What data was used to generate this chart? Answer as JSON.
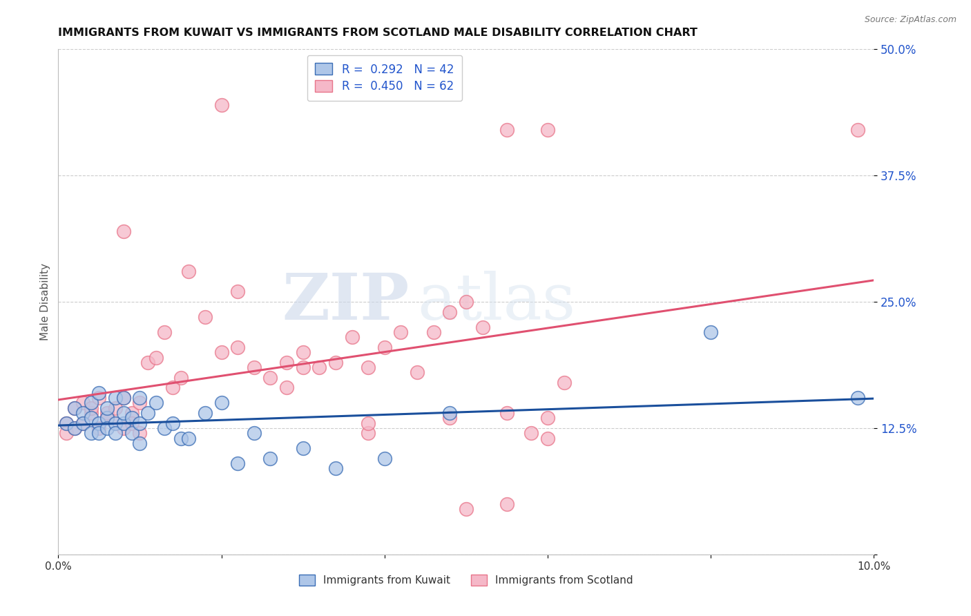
{
  "title": "IMMIGRANTS FROM KUWAIT VS IMMIGRANTS FROM SCOTLAND MALE DISABILITY CORRELATION CHART",
  "source": "Source: ZipAtlas.com",
  "ylabel": "Male Disability",
  "xlim": [
    0.0,
    0.1
  ],
  "ylim": [
    0.0,
    0.5
  ],
  "yticks": [
    0.0,
    0.125,
    0.25,
    0.375,
    0.5
  ],
  "ytick_labels": [
    "",
    "12.5%",
    "25.0%",
    "37.5%",
    "50.0%"
  ],
  "xticks": [
    0.0,
    0.02,
    0.04,
    0.06,
    0.08,
    0.1
  ],
  "xtick_labels": [
    "0.0%",
    "",
    "",
    "",
    "",
    "10.0%"
  ],
  "kuwait_color": "#aec6e8",
  "scotland_color": "#f5b8c8",
  "kuwait_edge_color": "#3a6db5",
  "scotland_edge_color": "#e8758a",
  "kuwait_line_color": "#1a4f9c",
  "scotland_line_color": "#e05070",
  "kuwait_R": 0.292,
  "kuwait_N": 42,
  "scotland_R": 0.45,
  "scotland_N": 62,
  "legend_label_kuwait": "Immigrants from Kuwait",
  "legend_label_scotland": "Immigrants from Scotland",
  "watermark_zip": "ZIP",
  "watermark_atlas": "atlas",
  "background_color": "#ffffff",
  "grid_color": "#cccccc",
  "kuwait_x": [
    0.001,
    0.002,
    0.002,
    0.003,
    0.003,
    0.004,
    0.004,
    0.004,
    0.005,
    0.005,
    0.005,
    0.006,
    0.006,
    0.006,
    0.007,
    0.007,
    0.007,
    0.008,
    0.008,
    0.008,
    0.009,
    0.009,
    0.01,
    0.01,
    0.01,
    0.011,
    0.012,
    0.013,
    0.014,
    0.015,
    0.016,
    0.018,
    0.02,
    0.022,
    0.024,
    0.026,
    0.03,
    0.034,
    0.04,
    0.048,
    0.08,
    0.098
  ],
  "kuwait_y": [
    0.13,
    0.145,
    0.125,
    0.14,
    0.13,
    0.15,
    0.135,
    0.12,
    0.16,
    0.13,
    0.12,
    0.135,
    0.145,
    0.125,
    0.155,
    0.13,
    0.12,
    0.155,
    0.13,
    0.14,
    0.12,
    0.135,
    0.13,
    0.155,
    0.11,
    0.14,
    0.15,
    0.125,
    0.13,
    0.115,
    0.115,
    0.14,
    0.15,
    0.09,
    0.12,
    0.095,
    0.105,
    0.085,
    0.095,
    0.14,
    0.22,
    0.155
  ],
  "scotland_x": [
    0.001,
    0.001,
    0.002,
    0.002,
    0.003,
    0.003,
    0.004,
    0.004,
    0.005,
    0.005,
    0.006,
    0.006,
    0.007,
    0.007,
    0.008,
    0.008,
    0.009,
    0.009,
    0.01,
    0.01,
    0.011,
    0.012,
    0.013,
    0.014,
    0.015,
    0.016,
    0.018,
    0.02,
    0.022,
    0.024,
    0.026,
    0.028,
    0.03,
    0.032,
    0.034,
    0.036,
    0.038,
    0.04,
    0.042,
    0.044,
    0.046,
    0.048,
    0.05,
    0.052,
    0.055,
    0.058,
    0.06,
    0.06,
    0.062,
    0.02,
    0.008,
    0.022,
    0.048,
    0.055,
    0.055,
    0.03,
    0.028,
    0.038,
    0.06,
    0.038,
    0.05,
    0.098
  ],
  "scotland_y": [
    0.13,
    0.12,
    0.145,
    0.125,
    0.15,
    0.13,
    0.14,
    0.145,
    0.125,
    0.155,
    0.135,
    0.14,
    0.13,
    0.145,
    0.125,
    0.155,
    0.14,
    0.13,
    0.15,
    0.12,
    0.19,
    0.195,
    0.22,
    0.165,
    0.175,
    0.28,
    0.235,
    0.2,
    0.205,
    0.185,
    0.175,
    0.19,
    0.2,
    0.185,
    0.19,
    0.215,
    0.185,
    0.205,
    0.22,
    0.18,
    0.22,
    0.24,
    0.25,
    0.225,
    0.14,
    0.12,
    0.135,
    0.115,
    0.17,
    0.445,
    0.32,
    0.26,
    0.135,
    0.05,
    0.42,
    0.185,
    0.165,
    0.12,
    0.42,
    0.13,
    0.045,
    0.42
  ]
}
